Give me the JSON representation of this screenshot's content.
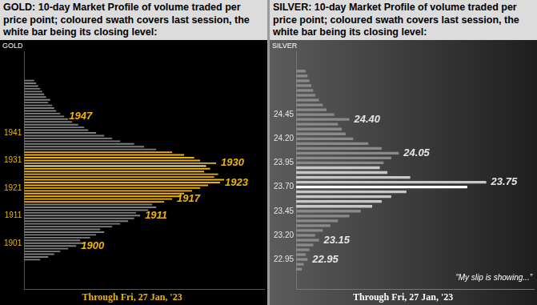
{
  "chart_data": [
    {
      "type": "bar",
      "title": "GOLD:  10-day Market Profile of volume traded per price point; coloured swath covers last session, the white bar being its closing level:",
      "ylabel": "GOLD",
      "note": "Through Fri, 27 Jan, '23",
      "orientation": "horizontal",
      "grid": false,
      "tick_labels": "y",
      "x": [
        1895,
        1896,
        1897,
        1898,
        1899,
        1900,
        1901,
        1902,
        1903,
        1904,
        1905,
        1906,
        1907,
        1908,
        1909,
        1910,
        1911,
        1912,
        1913,
        1914,
        1915,
        1916,
        1917,
        1918,
        1919,
        1920,
        1921,
        1922,
        1923,
        1924,
        1925,
        1926,
        1927,
        1928,
        1929,
        1930,
        1931,
        1932,
        1933,
        1934,
        1935,
        1936,
        1937,
        1938,
        1939,
        1940,
        1941,
        1942,
        1943,
        1944,
        1945,
        1946,
        1947,
        1948,
        1949,
        1950,
        1951,
        1952,
        1953,
        1954,
        1955,
        1956,
        1957,
        1958,
        1959,
        1960
      ],
      "values": [
        8,
        12,
        15,
        18,
        22,
        26,
        30,
        28,
        33,
        36,
        40,
        38,
        44,
        48,
        52,
        55,
        58,
        56,
        62,
        66,
        64,
        70,
        74,
        78,
        80,
        84,
        88,
        92,
        98,
        100,
        95,
        97,
        90,
        93,
        91,
        96,
        88,
        85,
        80,
        74,
        66,
        60,
        55,
        48,
        44,
        40,
        36,
        32,
        30,
        27,
        24,
        22,
        20,
        18,
        16,
        15,
        14,
        12,
        13,
        11,
        10,
        9,
        8,
        7,
        6,
        5
      ],
      "colors": [
        "#7f7f7f",
        "#7f7f7f",
        "#7f7f7f",
        "#7f7f7f",
        "#7f7f7f",
        "#7f7f7f",
        "#7f7f7f",
        "#7f7f7f",
        "#7f7f7f",
        "#7f7f7f",
        "#7f7f7f",
        "#7f7f7f",
        "#7f7f7f",
        "#7f7f7f",
        "#7f7f7f",
        "#7f7f7f",
        "#7f7f7f",
        "#7f7f7f",
        "#7f7f7f",
        "#7f7f7f",
        "#7f7f7f",
        "#f0b400",
        "#f0b400",
        "#f0b400",
        "#f0b400",
        "#f0b400",
        "#f0b400",
        "#f0b400",
        "#f0b400",
        "#f0b400",
        "#f0b400",
        "#f0b400",
        "#f0b400",
        "#f0b400",
        "#ffffff",
        "#f0b400",
        "#f0b400",
        "#f0b400",
        "#f0b400",
        "#f0b400",
        "#7f7f7f",
        "#7f7f7f",
        "#7f7f7f",
        "#7f7f7f",
        "#7f7f7f",
        "#7f7f7f",
        "#7f7f7f",
        "#7f7f7f",
        "#7f7f7f",
        "#7f7f7f",
        "#7f7f7f",
        "#7f7f7f",
        "#7f7f7f",
        "#7f7f7f",
        "#7f7f7f",
        "#7f7f7f",
        "#7f7f7f",
        "#7f7f7f",
        "#7f7f7f",
        "#7f7f7f",
        "#7f7f7f",
        "#7f7f7f",
        "#7f7f7f",
        "#7f7f7f",
        "#7f7f7f",
        "#7f7f7f"
      ],
      "xlim": [
        0,
        120
      ],
      "ylim": [
        1893,
        1962
      ],
      "yticks": [
        1901,
        1911,
        1921,
        1931,
        1941
      ],
      "annotations": [
        {
          "label": "1947",
          "value": 1947
        },
        {
          "label": "1930",
          "value": 1930
        },
        {
          "label": "1923",
          "value": 1923
        },
        {
          "label": "1917",
          "value": 1917
        },
        {
          "label": "1911",
          "value": 1911
        },
        {
          "label": "1900",
          "value": 1900
        }
      ]
    },
    {
      "type": "bar",
      "title": "SILVER:  10-day Market Profile of volume traded per price point; coloured swath covers last session, the white bar being its closing level:",
      "ylabel": "SILVER",
      "note": "Through Fri, 27 Jan, '23",
      "caption": "“My slip is showing...”",
      "orientation": "horizontal",
      "grid": false,
      "tick_labels": "y",
      "x": [
        22.85,
        22.9,
        22.95,
        23.0,
        23.05,
        23.1,
        23.15,
        23.2,
        23.25,
        23.3,
        23.35,
        23.4,
        23.45,
        23.5,
        23.55,
        23.6,
        23.65,
        23.7,
        23.75,
        23.8,
        23.85,
        23.9,
        23.95,
        24.0,
        24.05,
        24.1,
        24.15,
        24.2,
        24.25,
        24.3,
        24.35,
        24.4,
        24.45,
        24.5,
        24.55,
        24.6,
        24.65,
        24.7,
        24.75,
        24.8,
        24.85,
        24.9
      ],
      "values": [
        3,
        4,
        6,
        5,
        7,
        9,
        12,
        10,
        14,
        18,
        22,
        28,
        34,
        40,
        45,
        50,
        58,
        90,
        100,
        60,
        48,
        44,
        46,
        50,
        54,
        45,
        38,
        30,
        26,
        24,
        22,
        28,
        20,
        16,
        14,
        12,
        10,
        9,
        8,
        7,
        6,
        5
      ],
      "colors": [
        "#8a8a8a",
        "#8a8a8a",
        "#8a8a8a",
        "#8a8a8a",
        "#8a8a8a",
        "#8a8a8a",
        "#8a8a8a",
        "#8a8a8a",
        "#8a8a8a",
        "#8a8a8a",
        "#8a8a8a",
        "#8a8a8a",
        "#8a8a8a",
        "#c8c8c8",
        "#c8c8c8",
        "#c8c8c8",
        "#c8c8c8",
        "#ffffff",
        "#c8c8c8",
        "#c8c8c8",
        "#c8c8c8",
        "#c8c8c8",
        "#8a8a8a",
        "#8a8a8a",
        "#8a8a8a",
        "#8a8a8a",
        "#8a8a8a",
        "#8a8a8a",
        "#8a8a8a",
        "#8a8a8a",
        "#8a8a8a",
        "#8a8a8a",
        "#8a8a8a",
        "#8a8a8a",
        "#8a8a8a",
        "#8a8a8a",
        "#8a8a8a",
        "#8a8a8a",
        "#8a8a8a",
        "#8a8a8a",
        "#8a8a8a",
        "#8a8a8a"
      ],
      "xlim": [
        0,
        125
      ],
      "ylim": [
        22.82,
        24.93
      ],
      "yticks": [
        22.95,
        {
          "value": 23.2,
          "label": "23.20"
        },
        23.45,
        {
          "value": 23.7,
          "label": "23.70"
        },
        23.95,
        {
          "value": 24.2,
          "label": "24.20"
        },
        24.45
      ],
      "annotations": [
        {
          "label": "24.40",
          "value": 24.4
        },
        {
          "label": "24.05",
          "value": 24.05
        },
        {
          "label": "23.75",
          "value": 23.75
        },
        {
          "label": "23.15",
          "value": 23.15
        },
        {
          "label": "22.95",
          "value": 22.95
        }
      ]
    }
  ]
}
